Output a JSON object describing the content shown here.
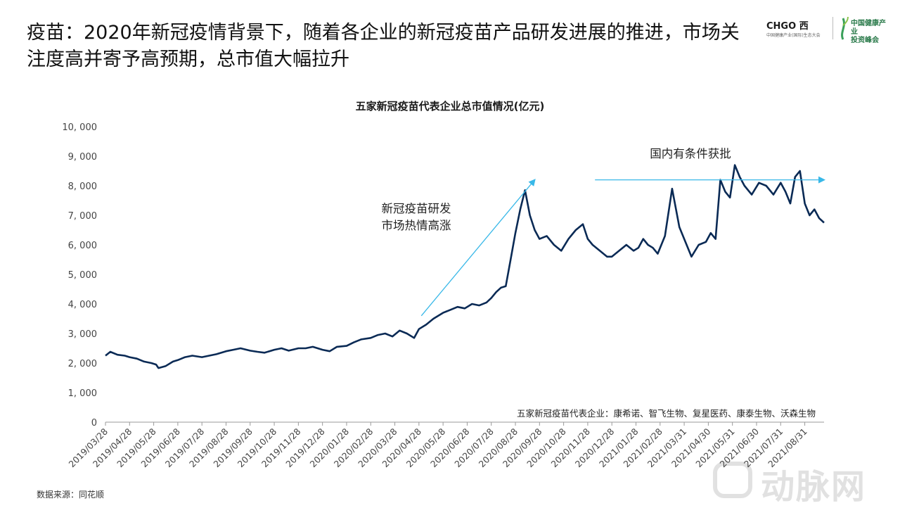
{
  "header": {
    "title": "疫苗：2020年新冠疫情背景下，随着各企业的新冠疫苗产品研发进展的推进，市场关注度高并寄予高预期，总市值大幅拉升"
  },
  "logo": {
    "brand_main": "CHGO",
    "brand_mid": "西",
    "brand_sub": "中国健康产业(国际)生态大会",
    "brand2": "中国健康产业\n投资峰会"
  },
  "source": "数据来源：同花顺",
  "watermark": "动脉网",
  "colors": {
    "line": "#0a2a55",
    "arrow": "#38b8e8",
    "axis": "#666666"
  },
  "chart_data": {
    "type": "line",
    "title": "五家新冠疫苗代表企业总市值情况(亿元)",
    "xlabel": "",
    "ylabel": "",
    "ylim": [
      0,
      10000
    ],
    "y_ticks": [
      0,
      1000,
      2000,
      3000,
      4000,
      5000,
      6000,
      7000,
      8000,
      9000,
      10000
    ],
    "y_tick_labels": [
      "0",
      "1, 000",
      "2, 000",
      "3, 000",
      "4, 000",
      "5, 000",
      "6, 000",
      "7, 000",
      "8, 000",
      "9, 000",
      "10, 000"
    ],
    "x_tick_labels": [
      "2019/03/28",
      "2019/04/28",
      "2019/05/28",
      "2019/06/28",
      "2019/07/28",
      "2019/08/28",
      "2019/09/28",
      "2019/10/28",
      "2019/11/28",
      "2019/12/28",
      "2020/01/28",
      "2020/02/28",
      "2020/03/28",
      "2020/04/28",
      "2020/05/28",
      "2020/06/28",
      "2020/07/28",
      "2020/08/28",
      "2020/09/28",
      "2020/10/28",
      "2020/11/28",
      "2020/12/28",
      "2021/01/28",
      "2021/02/28",
      "2021/03/31",
      "2021/04/30",
      "2021/05/31",
      "2021/06/30",
      "2021/07/31",
      "2021/08/31"
    ],
    "series": [
      {
        "name": "",
        "x_month_index": [
          0,
          0.2,
          0.5,
          0.8,
          1.0,
          1.3,
          1.6,
          1.9,
          2.1,
          2.2,
          2.5,
          2.8,
          3.0,
          3.3,
          3.6,
          4.0,
          4.3,
          4.6,
          5.0,
          5.3,
          5.6,
          6.0,
          6.3,
          6.6,
          7.0,
          7.3,
          7.6,
          8.0,
          8.3,
          8.6,
          9.0,
          9.3,
          9.6,
          10.0,
          10.3,
          10.6,
          11.0,
          11.3,
          11.6,
          11.9,
          12.2,
          12.5,
          12.8,
          13.0,
          13.3,
          13.6,
          14.0,
          14.3,
          14.6,
          14.9,
          15.2,
          15.5,
          15.8,
          16.0,
          16.2,
          16.4,
          16.6,
          16.8,
          17.0,
          17.2,
          17.4,
          17.6,
          17.8,
          18.0,
          18.3,
          18.6,
          18.9,
          19.2,
          19.5,
          19.8,
          20.0,
          20.2,
          20.5,
          20.8,
          21.0,
          21.3,
          21.6,
          21.9,
          22.1,
          22.3,
          22.5,
          22.7,
          22.9,
          23.2,
          23.5,
          23.8,
          24.0,
          24.3,
          24.6,
          24.9,
          25.1,
          25.3,
          25.5,
          25.7,
          25.9,
          26.1,
          26.3,
          26.5,
          26.8,
          27.1,
          27.4,
          27.7,
          28.0,
          28.2,
          28.4,
          28.6,
          28.8,
          29.0,
          29.2,
          29.4,
          29.6,
          29.8
        ],
        "values": [
          2250,
          2380,
          2280,
          2250,
          2200,
          2150,
          2050,
          2000,
          1950,
          1830,
          1900,
          2050,
          2100,
          2200,
          2250,
          2200,
          2250,
          2300,
          2400,
          2450,
          2500,
          2420,
          2380,
          2350,
          2450,
          2500,
          2420,
          2500,
          2500,
          2550,
          2450,
          2400,
          2550,
          2580,
          2700,
          2800,
          2850,
          2950,
          3000,
          2900,
          3100,
          3000,
          2850,
          3150,
          3300,
          3500,
          3700,
          3800,
          3900,
          3850,
          4000,
          3950,
          4050,
          4200,
          4400,
          4550,
          4600,
          5500,
          6400,
          7200,
          7850,
          7000,
          6500,
          6200,
          6300,
          6000,
          5800,
          6200,
          6500,
          6700,
          6200,
          6000,
          5800,
          5600,
          5600,
          5800,
          6000,
          5800,
          5900,
          6200,
          6000,
          5900,
          5700,
          6300,
          7900,
          6600,
          6200,
          5600,
          6000,
          6100,
          6400,
          6200,
          8200,
          7800,
          7600,
          8700,
          8300,
          8000,
          7700,
          8100,
          8000,
          7700,
          8100,
          7800,
          7400,
          8300,
          8500,
          7400,
          7000,
          7200,
          6900,
          6750
        ]
      }
    ],
    "annotations": [
      {
        "text": "新冠疫苗研发\n市场热情高涨"
      },
      {
        "text": "国内有条件获批"
      },
      {
        "text": "五家新冠疫苗代表企业：康希诺、智飞生物、复星医药、康泰生物、沃森生物"
      }
    ],
    "grid": false,
    "legend": "none"
  }
}
